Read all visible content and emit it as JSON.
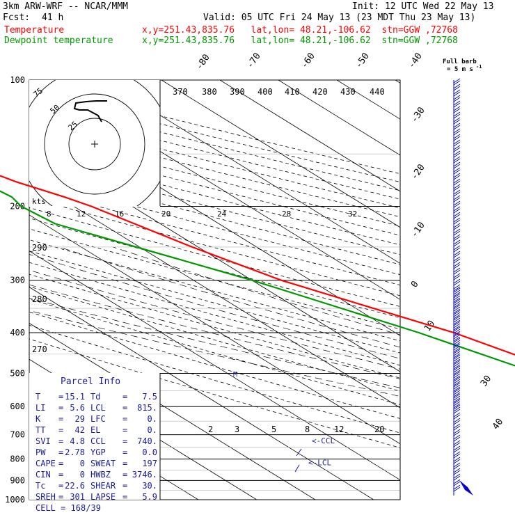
{
  "header": {
    "model": "3km ARW-WRF -- NCAR/MMM",
    "init": "Init: 12 UTC Wed 22 May 13",
    "fcst_label": "Fcst:",
    "fcst_value": "41 h",
    "valid": "Valid: 05 UTC Fri 24 May 13 (23 MDT Thu 23 May 13)",
    "series_lines": [
      {
        "name": "Temperature",
        "info": "x,y=251.43,835.76   lat,lon= 48.21,-106.62  stn=GGW ,72768",
        "color": "#ff0000"
      },
      {
        "name": "Dewpoint temperature",
        "info": "x,y=251.43,835.76   lat,lon= 48.21,-106.62  stn=GGW ,72768",
        "color": "#009900"
      }
    ],
    "barb_legend_1": "Full barb",
    "barb_legend_2": "= 5 m s",
    "barb_legend_sup": "-1"
  },
  "chart_data": {
    "type": "line",
    "pressure_levels": [
      100,
      200,
      300,
      400,
      500,
      600,
      700,
      800,
      900,
      1000
    ],
    "isotherm_labels": [
      -80,
      -70,
      -60,
      -50,
      -40,
      -30,
      -20,
      -10,
      0,
      10,
      30,
      40
    ],
    "theta_labels": [
      370,
      380,
      390,
      400,
      410,
      420,
      430,
      440,
      290,
      280,
      270
    ],
    "mixing_ratio_labels": [
      2,
      3,
      5,
      8,
      12,
      20
    ],
    "series": [
      {
        "name": "Temperature",
        "color": "#ff0000",
        "points": [
          [
            100,
            -58
          ],
          [
            150,
            -58
          ],
          [
            175,
            -53
          ],
          [
            190,
            -49
          ],
          [
            200,
            -47
          ],
          [
            250,
            -41
          ],
          [
            300,
            -35
          ],
          [
            350,
            -27
          ],
          [
            400,
            -20
          ],
          [
            500,
            -12
          ],
          [
            550,
            -7
          ],
          [
            600,
            -3
          ],
          [
            650,
            1
          ],
          [
            700,
            4
          ],
          [
            750,
            7
          ],
          [
            800,
            10
          ],
          [
            850,
            12
          ],
          [
            900,
            15
          ]
        ]
      },
      {
        "name": "Dewpoint temperature",
        "color": "#009900",
        "points": [
          [
            100,
            -72
          ],
          [
            150,
            -61
          ],
          [
            175,
            -59
          ],
          [
            190,
            -58
          ],
          [
            200,
            -59
          ],
          [
            220,
            -58
          ],
          [
            300,
            -40
          ],
          [
            400,
            -26
          ],
          [
            500,
            -17
          ],
          [
            550,
            -12
          ],
          [
            600,
            -8
          ],
          [
            650,
            -4
          ],
          [
            700,
            -1
          ],
          [
            750,
            2
          ],
          [
            800,
            5
          ],
          [
            850,
            6
          ],
          [
            900,
            7.5
          ]
        ]
      }
    ],
    "hodograph": {
      "ring_labels": [
        "75",
        "50",
        "25"
      ],
      "unit": "kts",
      "speed_ticks": [
        "8",
        "12",
        "16",
        "20",
        "24",
        "28",
        "32"
      ]
    },
    "annotations": {
      "ccl": "<-CCL",
      "lcl": "<-LCL",
      "m": "M",
      "ccl_pressure": 740,
      "lcl_pressure": 815
    }
  },
  "parcel_info": {
    "title": "Parcel Info",
    "rows": [
      {
        "l1": "T",
        "v1": "15.1",
        "l2": "Td",
        "v2": "7.5"
      },
      {
        "l1": "LI",
        "v1": "5.6",
        "l2": "LCL",
        "v2": "815."
      },
      {
        "l1": "K",
        "v1": "29",
        "l2": "LFC",
        "v2": "0."
      },
      {
        "l1": "TT",
        "v1": "42",
        "l2": "EL",
        "v2": "0."
      },
      {
        "l1": "SVI",
        "v1": "4.8",
        "l2": "CCL",
        "v2": "740."
      },
      {
        "l1": "PW",
        "v1": "2.78",
        "l2": "YGP",
        "v2": "0.0"
      },
      {
        "l1": "CAPE",
        "v1": "0",
        "l2": "SWEAT",
        "v2": "197"
      },
      {
        "l1": "CIN",
        "v1": "0",
        "l2": "HWBZ",
        "v2": "3746."
      },
      {
        "l1": "Tc",
        "v1": "22.6",
        "l2": "SHEAR",
        "v2": "30."
      },
      {
        "l1": "SREH",
        "v1": "301",
        "l2": "LAPSE",
        "v2": "5.9"
      }
    ],
    "cell": "CELL = 168/39"
  },
  "colors": {
    "temperature": "#ff0000",
    "dewpoint": "#009900",
    "barbs": "#0000cc",
    "parcel_text": "#1a1a99"
  }
}
